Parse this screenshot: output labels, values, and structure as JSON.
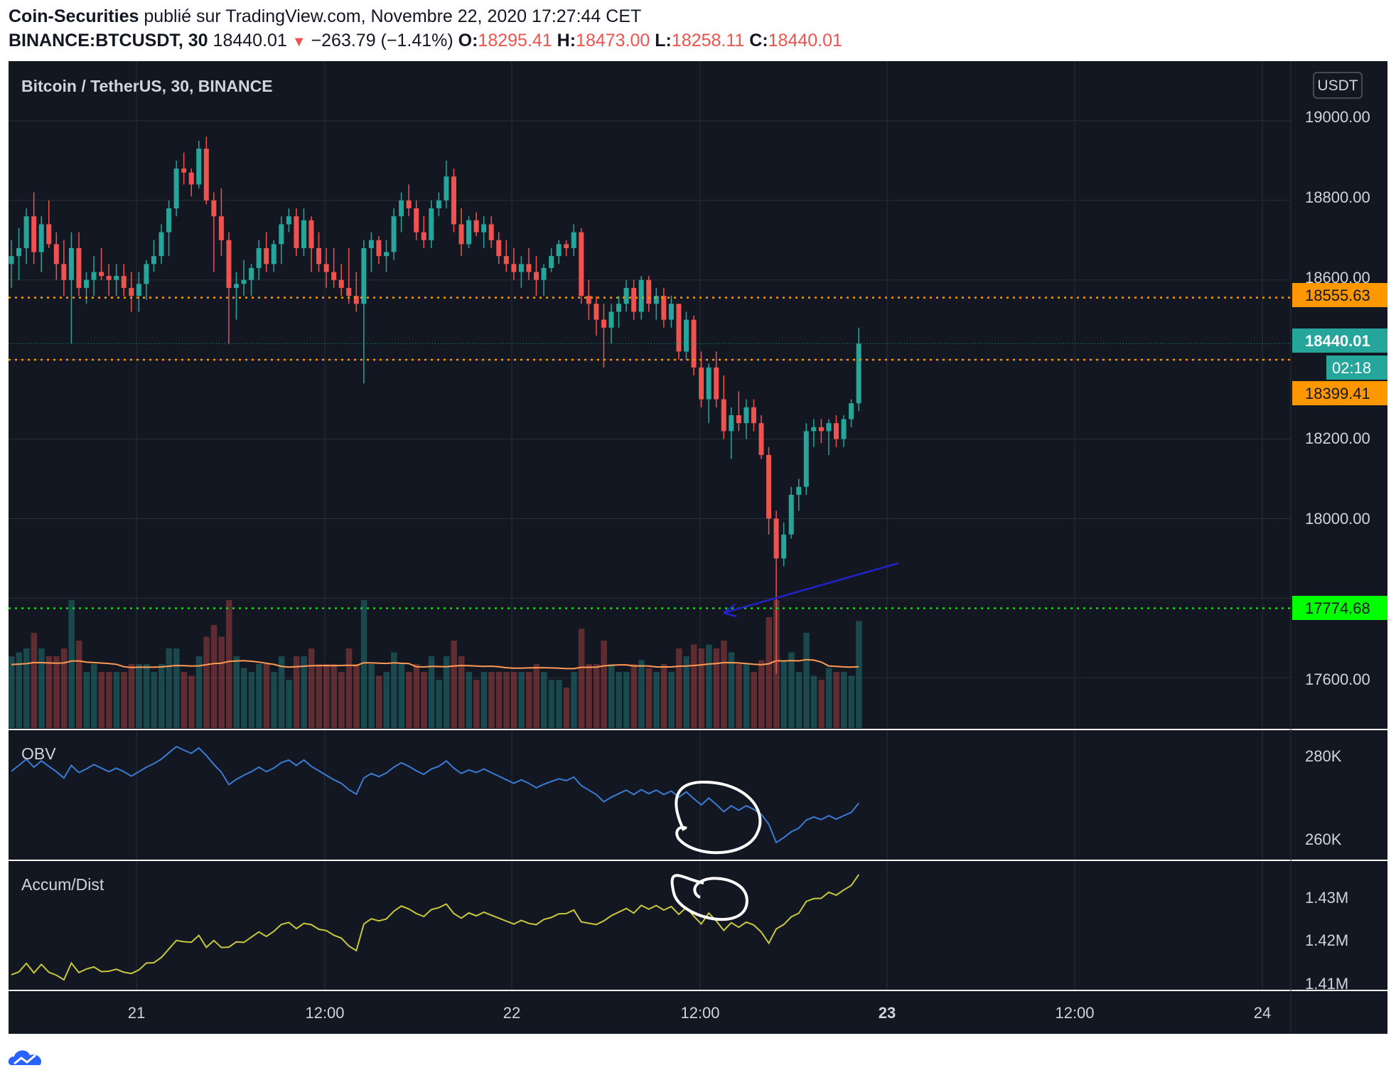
{
  "header": {
    "author": "Coin-Securities",
    "published_text": "publié sur TradingView.com, Novembre 22, 2020 17:27:44 CET",
    "symbol": "BINANCE:BTCUSDT, 30",
    "last": "18440.01",
    "change": "−263.79 (−1.41%)",
    "o_label": "O:",
    "o_value": "18295.41",
    "h_label": "H:",
    "h_value": "18473.00",
    "l_label": "L:",
    "l_value": "18258.11",
    "c_label": "C:",
    "c_value": "18440.01"
  },
  "chart_title": "Bitcoin / TetherUS, 30, BINANCE",
  "currency_badge": "USDT",
  "colors": {
    "background": "#131722",
    "up": "#26a69a",
    "down": "#ef5350",
    "grid": "#2a2e39",
    "orange_line": "#ff9800",
    "green_line": "#00e600",
    "obv_line": "#2962ff",
    "ad_line": "#c8c83c",
    "volume_ma": "#ff9a52",
    "arrow": "#2020c0"
  },
  "chart_data": [
    {
      "type": "candlestick",
      "title": "Bitcoin / TetherUS, 30, BINANCE",
      "x_labels": [
        "21",
        "12:00",
        "22",
        "12:00",
        "23",
        "12:00",
        "24"
      ],
      "y_tick_labels": [
        "19000.00",
        "18800.00",
        "18600.00",
        "18200.00",
        "18000.00",
        "17600.00"
      ],
      "ylim": [
        17470,
        19150
      ],
      "candles": [
        [
          18640,
          18700,
          18580,
          18660
        ],
        [
          18660,
          18730,
          18600,
          18680
        ],
        [
          18680,
          18780,
          18640,
          18760
        ],
        [
          18760,
          18820,
          18640,
          18670
        ],
        [
          18670,
          18760,
          18620,
          18740
        ],
        [
          18740,
          18800,
          18680,
          18690
        ],
        [
          18690,
          18720,
          18600,
          18640
        ],
        [
          18640,
          18700,
          18560,
          18600
        ],
        [
          18600,
          18720,
          18440,
          18680
        ],
        [
          18680,
          18720,
          18560,
          18580
        ],
        [
          18580,
          18620,
          18540,
          18600
        ],
        [
          18600,
          18660,
          18560,
          18620
        ],
        [
          18620,
          18680,
          18600,
          18610
        ],
        [
          18610,
          18640,
          18560,
          18600
        ],
        [
          18600,
          18640,
          18560,
          18610
        ],
        [
          18610,
          18640,
          18560,
          18580
        ],
        [
          18580,
          18620,
          18520,
          18560
        ],
        [
          18560,
          18620,
          18520,
          18590
        ],
        [
          18590,
          18650,
          18550,
          18640
        ],
        [
          18640,
          18700,
          18620,
          18660
        ],
        [
          18660,
          18740,
          18640,
          18720
        ],
        [
          18720,
          18800,
          18660,
          18780
        ],
        [
          18780,
          18900,
          18760,
          18880
        ],
        [
          18880,
          18920,
          18840,
          18870
        ],
        [
          18870,
          18880,
          18810,
          18840
        ],
        [
          18840,
          18950,
          18830,
          18930
        ],
        [
          18930,
          18960,
          18790,
          18800
        ],
        [
          18800,
          18820,
          18620,
          18760
        ],
        [
          18760,
          18830,
          18660,
          18700
        ],
        [
          18700,
          18720,
          18440,
          18580
        ],
        [
          18580,
          18620,
          18500,
          18590
        ],
        [
          18590,
          18650,
          18560,
          18600
        ],
        [
          18600,
          18640,
          18560,
          18630
        ],
        [
          18630,
          18700,
          18600,
          18680
        ],
        [
          18680,
          18720,
          18620,
          18640
        ],
        [
          18640,
          18700,
          18620,
          18690
        ],
        [
          18690,
          18760,
          18640,
          18740
        ],
        [
          18740,
          18780,
          18720,
          18760
        ],
        [
          18760,
          18780,
          18660,
          18680
        ],
        [
          18680,
          18780,
          18660,
          18750
        ],
        [
          18750,
          18760,
          18620,
          18680
        ],
        [
          18680,
          18720,
          18620,
          18640
        ],
        [
          18640,
          18680,
          18580,
          18620
        ],
        [
          18620,
          18680,
          18580,
          18600
        ],
        [
          18600,
          18640,
          18560,
          18580
        ],
        [
          18580,
          18680,
          18540,
          18560
        ],
        [
          18560,
          18620,
          18520,
          18540
        ],
        [
          18540,
          18700,
          18340,
          18680
        ],
        [
          18680,
          18720,
          18620,
          18700
        ],
        [
          18700,
          18710,
          18640,
          18660
        ],
        [
          18660,
          18700,
          18620,
          18670
        ],
        [
          18670,
          18780,
          18650,
          18760
        ],
        [
          18760,
          18820,
          18720,
          18800
        ],
        [
          18800,
          18840,
          18760,
          18780
        ],
        [
          18780,
          18800,
          18700,
          18720
        ],
        [
          18720,
          18760,
          18680,
          18700
        ],
        [
          18700,
          18800,
          18680,
          18780
        ],
        [
          18780,
          18820,
          18760,
          18800
        ],
        [
          18800,
          18900,
          18780,
          18860
        ],
        [
          18860,
          18880,
          18720,
          18740
        ],
        [
          18740,
          18780,
          18660,
          18690
        ],
        [
          18690,
          18760,
          18680,
          18750
        ],
        [
          18750,
          18770,
          18710,
          18720
        ],
        [
          18720,
          18760,
          18680,
          18740
        ],
        [
          18740,
          18760,
          18680,
          18700
        ],
        [
          18700,
          18720,
          18640,
          18660
        ],
        [
          18660,
          18700,
          18620,
          18640
        ],
        [
          18640,
          18680,
          18600,
          18620
        ],
        [
          18620,
          18660,
          18580,
          18640
        ],
        [
          18640,
          18680,
          18600,
          18620
        ],
        [
          18620,
          18660,
          18560,
          18600
        ],
        [
          18600,
          18640,
          18560,
          18630
        ],
        [
          18630,
          18680,
          18620,
          18660
        ],
        [
          18660,
          18700,
          18640,
          18690
        ],
        [
          18690,
          18700,
          18660,
          18680
        ],
        [
          18680,
          18740,
          18660,
          18720
        ],
        [
          18720,
          18730,
          18540,
          18560
        ],
        [
          18560,
          18600,
          18500,
          18540
        ],
        [
          18540,
          18560,
          18460,
          18500
        ],
        [
          18500,
          18540,
          18380,
          18480
        ],
        [
          18480,
          18540,
          18440,
          18520
        ],
        [
          18520,
          18560,
          18480,
          18540
        ],
        [
          18540,
          18600,
          18520,
          18580
        ],
        [
          18580,
          18600,
          18500,
          18520
        ],
        [
          18520,
          18610,
          18500,
          18600
        ],
        [
          18600,
          18610,
          18520,
          18540
        ],
        [
          18540,
          18580,
          18500,
          18560
        ],
        [
          18560,
          18580,
          18480,
          18500
        ],
        [
          18500,
          18560,
          18480,
          18540
        ],
        [
          18540,
          18540,
          18400,
          18420
        ],
        [
          18420,
          18520,
          18400,
          18500
        ],
        [
          18500,
          18510,
          18360,
          18380
        ],
        [
          18380,
          18420,
          18280,
          18300
        ],
        [
          18300,
          18390,
          18240,
          18380
        ],
        [
          18380,
          18420,
          18280,
          18300
        ],
        [
          18300,
          18360,
          18200,
          18220
        ],
        [
          18220,
          18280,
          18150,
          18260
        ],
        [
          18260,
          18320,
          18220,
          18240
        ],
        [
          18240,
          18300,
          18200,
          18280
        ],
        [
          18280,
          18300,
          18220,
          18240
        ],
        [
          18240,
          18260,
          18150,
          18160
        ],
        [
          18160,
          18180,
          17960,
          18000
        ],
        [
          18000,
          18020,
          17610,
          17900
        ],
        [
          17900,
          17990,
          17880,
          17960
        ],
        [
          17960,
          18080,
          17950,
          18060
        ],
        [
          18060,
          18100,
          18020,
          18080
        ],
        [
          18080,
          18240,
          18060,
          18220
        ],
        [
          18220,
          18250,
          18180,
          18230
        ],
        [
          18230,
          18250,
          18190,
          18220
        ],
        [
          18220,
          18250,
          18160,
          18240
        ],
        [
          18240,
          18260,
          18180,
          18200
        ],
        [
          18200,
          18260,
          18180,
          18250
        ],
        [
          18250,
          18300,
          18230,
          18290
        ],
        [
          18290,
          18480,
          18270,
          18440
        ]
      ],
      "horizontal_levels": [
        "18555.63",
        "18399.41",
        "17774.68"
      ],
      "last_price": "18440.01",
      "countdown": "02:18"
    },
    {
      "type": "line",
      "title": "OBV",
      "y_tick_labels": [
        "280K",
        "260K"
      ]
    },
    {
      "type": "line",
      "title": "Accum/Dist",
      "y_tick_labels": [
        "1.43M",
        "1.42M",
        "1.41M"
      ]
    }
  ],
  "footer": {
    "brand": "TradingView"
  }
}
